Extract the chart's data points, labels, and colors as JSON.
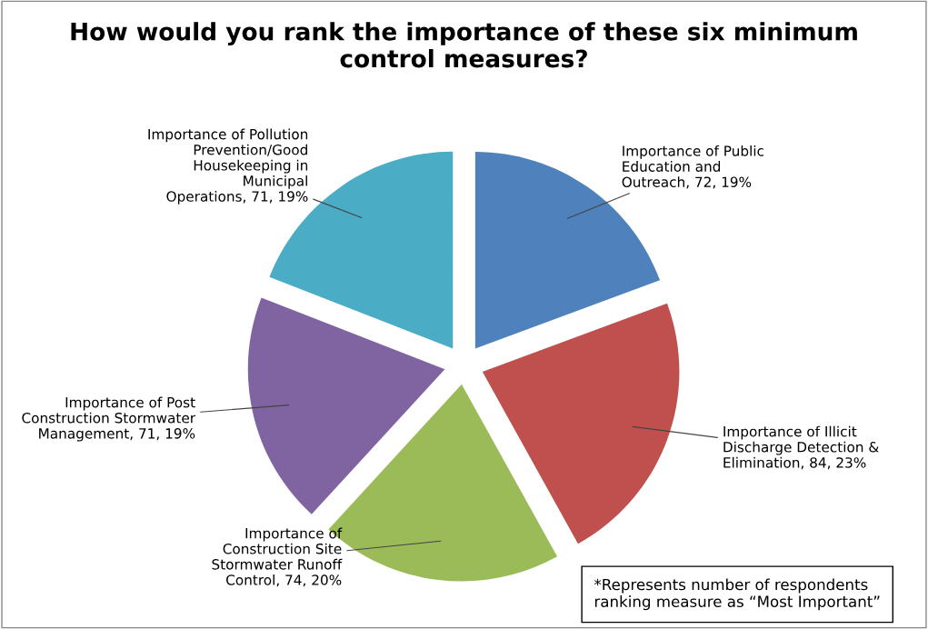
{
  "chart_data": {
    "type": "pie",
    "title": "How would you rank the importance of these six minimum control measures?",
    "categories": [
      "Importance of Public Education and Outreach",
      "Importance of Illicit Discharge Detection & Elimination",
      "Importance of Construction Site Stormwater Runoff Control",
      "Importance of Post Construction Stormwater Management",
      "Importance of Pollution Prevention/Good Housekeeping in Municipal Operations"
    ],
    "values": [
      72,
      84,
      74,
      71,
      71
    ],
    "value_labels": [
      "72, 19%",
      "84, 23%",
      "74, 20%",
      "71, 19%",
      "71, 19%"
    ],
    "colors": [
      "#4f81bd",
      "#c0504d",
      "#9bbb59",
      "#8064a2",
      "#4bacc6"
    ],
    "annotations": [
      "*Represents number of respondents ranking measure as “Most Important”"
    ]
  }
}
